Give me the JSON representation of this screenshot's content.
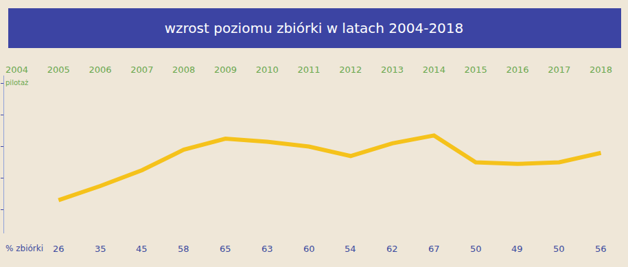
{
  "chart_data": {
    "type": "line",
    "title": "wzrost poziomu zbiórki w latach 2004-2018",
    "ylabel": "% zbiórki",
    "categories": [
      "2004",
      "2005",
      "2006",
      "2007",
      "2008",
      "2009",
      "2010",
      "2011",
      "2012",
      "2013",
      "2014",
      "2015",
      "2016",
      "2017",
      "2018"
    ],
    "values": [
      null,
      26,
      35,
      45,
      58,
      65,
      63,
      60,
      54,
      62,
      67,
      50,
      49,
      50,
      56
    ],
    "color": "#f5c21b",
    "ylim": [
      5,
      105
    ],
    "yticks": [
      20,
      40,
      60,
      80,
      100
    ],
    "tick_labels": "x",
    "grid": false,
    "data_labels": true,
    "annotations": [
      {
        "category": "2004",
        "text": "pilotaż"
      }
    ]
  }
}
